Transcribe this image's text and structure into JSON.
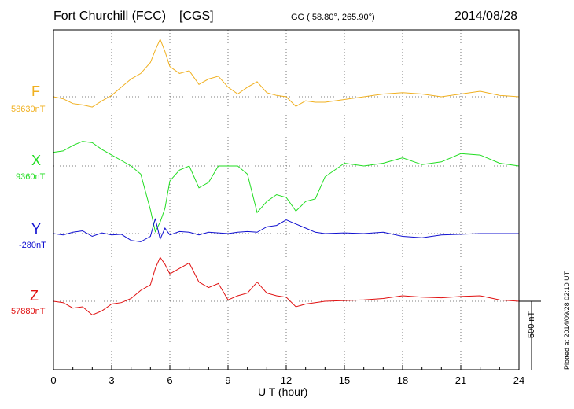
{
  "header": {
    "station": "Fort Churchill (FCC)",
    "network": "[CGS]",
    "coords": "GG ( 58.80°, 265.90°)",
    "date": "2014/08/28"
  },
  "plotted_note": "Plotted at 2014/09/28 02:10 UT",
  "scale_label": "500 nT",
  "chart_data": {
    "type": "line",
    "xlabel": "U T (hour)",
    "xlim": [
      0,
      24
    ],
    "xticks": [
      "0",
      "3",
      "6",
      "9",
      "12",
      "15",
      "18",
      "21",
      "24"
    ],
    "x_hours": [
      0,
      0.5,
      1,
      1.5,
      2,
      2.5,
      3,
      3.5,
      4,
      4.5,
      5,
      5.25,
      5.5,
      5.75,
      6,
      6.5,
      7,
      7.5,
      8,
      8.5,
      9,
      9.5,
      10,
      10.5,
      11,
      11.5,
      12,
      12.5,
      13,
      13.5,
      14,
      15,
      16,
      17,
      18,
      19,
      20,
      21,
      22,
      23,
      24
    ],
    "series": [
      {
        "name": "F",
        "baseline_label": "58630nT",
        "color": "#f0b020",
        "values_nT": [
          58630,
          58615,
          58580,
          58570,
          58555,
          58600,
          58640,
          58700,
          58760,
          58800,
          58880,
          58970,
          59050,
          58960,
          58850,
          58800,
          58820,
          58720,
          58760,
          58780,
          58700,
          58650,
          58700,
          58740,
          58660,
          58640,
          58630,
          58560,
          58600,
          58590,
          58590,
          58610,
          58630,
          58650,
          58660,
          58650,
          58630,
          58650,
          58670,
          58640,
          58630
        ]
      },
      {
        "name": "X",
        "baseline_label": "9360nT",
        "color": "#22dd22",
        "values_nT": [
          9460,
          9470,
          9510,
          9540,
          9530,
          9480,
          9440,
          9400,
          9360,
          9300,
          9040,
          8880,
          8950,
          9050,
          9250,
          9330,
          9360,
          9200,
          9240,
          9360,
          9360,
          9360,
          9300,
          9020,
          9100,
          9150,
          9130,
          9030,
          9100,
          9120,
          9280,
          9380,
          9360,
          9380,
          9420,
          9370,
          9390,
          9450,
          9440,
          9380,
          9360
        ]
      },
      {
        "name": "Y",
        "baseline_label": "-280nT",
        "color": "#1010d0",
        "values_nT": [
          -280,
          -290,
          -270,
          -260,
          -300,
          -275,
          -290,
          -285,
          -330,
          -340,
          -300,
          -170,
          -320,
          -240,
          -290,
          -265,
          -270,
          -290,
          -270,
          -275,
          -280,
          -270,
          -265,
          -270,
          -230,
          -220,
          -180,
          -210,
          -240,
          -270,
          -280,
          -275,
          -280,
          -270,
          -300,
          -310,
          -290,
          -285,
          -280,
          -280,
          -280
        ]
      },
      {
        "name": "Z",
        "baseline_label": "57880nT",
        "color": "#e01010",
        "values_nT": [
          57880,
          57870,
          57830,
          57840,
          57780,
          57810,
          57860,
          57870,
          57900,
          57960,
          58000,
          58120,
          58200,
          58150,
          58080,
          58120,
          58160,
          58020,
          57980,
          58010,
          57890,
          57920,
          57940,
          58020,
          57940,
          57920,
          57910,
          57840,
          57860,
          57870,
          57880,
          57885,
          57890,
          57900,
          57920,
          57910,
          57905,
          57915,
          57920,
          57890,
          57880
        ]
      }
    ],
    "grid": true,
    "scale_bar_nT": 500
  }
}
